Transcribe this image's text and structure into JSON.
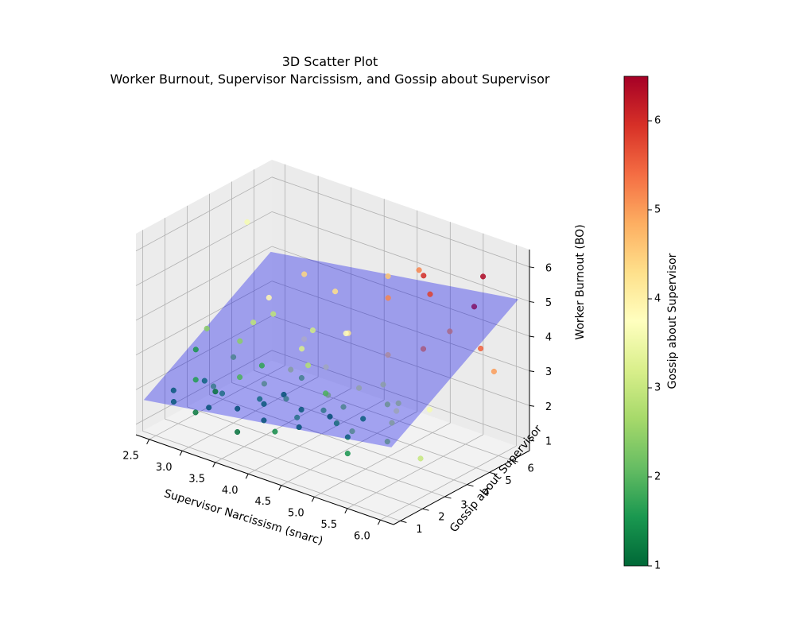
{
  "chart_data": {
    "type": "scatter3d",
    "title_line1": "3D Scatter Plot",
    "title_line2": "Worker Burnout, Supervisor Narcissism, and Gossip about Supervisor",
    "xlabel": "Supervisor Narcissism (snarc)",
    "ylabel": "Gossip about Supervisor",
    "zlabel": "Worker Burnout (BO)",
    "colorbar_label": "Gossip about Supervisor",
    "xlim": [
      2.3,
      6.2
    ],
    "ylim": [
      0.7,
      6.8
    ],
    "zlim": [
      0.7,
      6.5
    ],
    "clim": [
      1,
      6.5
    ],
    "xticks": [
      "2.5",
      "3.0",
      "3.5",
      "4.0",
      "4.5",
      "5.0",
      "5.5",
      "6.0"
    ],
    "yticks": [
      "1",
      "2",
      "3",
      "4",
      "5",
      "6"
    ],
    "zticks": [
      "1",
      "2",
      "3",
      "4",
      "5",
      "6"
    ],
    "cticks": [
      "1",
      "2",
      "3",
      "4",
      "5",
      "6"
    ],
    "colormap": "RdYlGn_r",
    "plane": {
      "intercept": 0.6,
      "coef_x": 0.3,
      "coef_y": 0.4,
      "color": "#0000ee",
      "alpha": 0.33
    },
    "points": [
      [
        2.5,
        1.8,
        1.4,
        1.3
      ],
      [
        2.8,
        1.9,
        2.2,
        1.6
      ],
      [
        3.1,
        1.6,
        1.7,
        1.2
      ],
      [
        3.4,
        2.1,
        2.6,
        1.9
      ],
      [
        3.6,
        1.4,
        1.4,
        1.1
      ],
      [
        3.9,
        1.7,
        2.3,
        1.3
      ],
      [
        4.2,
        2.3,
        1.9,
        1.8
      ],
      [
        4.5,
        1.5,
        2.1,
        1.2
      ],
      [
        4.8,
        2.6,
        2.5,
        2.2
      ],
      [
        5.1,
        1.9,
        1.6,
        1.5
      ],
      [
        5.4,
        2.8,
        2.9,
        2.6
      ],
      [
        5.8,
        3.1,
        1.5,
        3.0
      ],
      [
        3.2,
        2.7,
        3.3,
        2.4
      ],
      [
        3.7,
        2.2,
        3.1,
        1.7
      ],
      [
        4.1,
        2.8,
        2.8,
        2.1
      ],
      [
        4.4,
        3.1,
        2.4,
        2.7
      ],
      [
        4.7,
        2.1,
        3.0,
        1.9
      ],
      [
        5.0,
        2.4,
        2.0,
        2.3
      ],
      [
        5.3,
        2.0,
        2.7,
        1.4
      ],
      [
        2.9,
        2.4,
        1.9,
        2.0
      ],
      [
        3.5,
        2.9,
        2.2,
        2.3
      ],
      [
        4.0,
        1.9,
        1.5,
        1.4
      ],
      [
        4.6,
        2.9,
        1.8,
        2.5
      ],
      [
        5.2,
        3.2,
        3.2,
        3.1
      ],
      [
        3.3,
        1.3,
        2.4,
        1.1
      ],
      [
        3.8,
        3.2,
        2.7,
        3.0
      ],
      [
        4.3,
        2.5,
        3.4,
        2.8
      ],
      [
        2.7,
        2.2,
        2.9,
        1.5
      ],
      [
        3.0,
        3.0,
        2.6,
        2.2
      ],
      [
        4.9,
        1.7,
        2.6,
        1.1
      ],
      [
        2.6,
        1.5,
        1.9,
        1.3
      ],
      [
        3.1,
        2.2,
        1.9,
        1.7
      ],
      [
        3.6,
        2.4,
        2.0,
        1.6
      ],
      [
        4.1,
        2.0,
        2.6,
        1.2
      ],
      [
        4.5,
        2.6,
        2.2,
        1.9
      ],
      [
        5.0,
        2.2,
        1.9,
        1.4
      ],
      [
        5.5,
        2.5,
        2.0,
        2.4
      ],
      [
        3.3,
        3.0,
        3.8,
        2.9
      ],
      [
        3.9,
        3.4,
        3.3,
        3.2
      ],
      [
        4.2,
        3.6,
        2.9,
        3.5
      ],
      [
        4.8,
        3.3,
        2.8,
        3.2
      ],
      [
        5.3,
        3.5,
        2.4,
        3.4
      ],
      [
        5.7,
        3.8,
        2.6,
        3.6
      ],
      [
        3.0,
        1.3,
        1.6,
        1.2
      ],
      [
        3.5,
        1.7,
        1.9,
        1.1
      ],
      [
        4.0,
        1.4,
        2.0,
        1.2
      ],
      [
        4.4,
        1.9,
        2.4,
        1.3
      ],
      [
        4.9,
        2.0,
        2.3,
        1.7
      ],
      [
        5.6,
        2.7,
        3.1,
        2.9
      ],
      [
        3.2,
        4.0,
        4.1,
        3.9
      ],
      [
        3.7,
        4.1,
        3.2,
        3.8
      ],
      [
        4.3,
        4.3,
        3.7,
        4.2
      ],
      [
        4.8,
        4.6,
        3.3,
        4.5
      ],
      [
        5.2,
        5.0,
        3.6,
        5.2
      ],
      [
        5.5,
        5.3,
        4.2,
        5.0
      ],
      [
        5.9,
        5.5,
        3.9,
        5.5
      ],
      [
        6.0,
        5.8,
        3.2,
        5.0
      ],
      [
        4.0,
        4.6,
        4.6,
        4.3
      ],
      [
        4.6,
        5.2,
        4.6,
        5.2
      ],
      [
        5.1,
        5.6,
        4.9,
        5.8
      ],
      [
        5.6,
        6.1,
        4.7,
        6.2
      ],
      [
        4.4,
        3.9,
        3.9,
        3.8
      ],
      [
        3.6,
        4.4,
        4.9,
        4.4
      ],
      [
        2.6,
        4.8,
        5.6,
        3.6
      ],
      [
        4.7,
        4.9,
        5.4,
        4.6
      ],
      [
        5.0,
        5.4,
        5.6,
        5.2
      ],
      [
        5.7,
        6.2,
        5.6,
        6.4
      ],
      [
        4.9,
        5.9,
        5.2,
        6.0
      ],
      [
        3.4,
        3.6,
        3.9,
        2.9
      ],
      [
        4.1,
        3.3,
        4.0,
        3.1
      ],
      [
        2.8,
        2.4,
        3.5,
        2.4
      ],
      [
        3.9,
        2.7,
        2.1,
        2.0
      ],
      [
        5.4,
        3.0,
        2.3,
        2.9
      ],
      [
        2.9,
        2.0,
        2.2,
        1.5
      ]
    ]
  }
}
